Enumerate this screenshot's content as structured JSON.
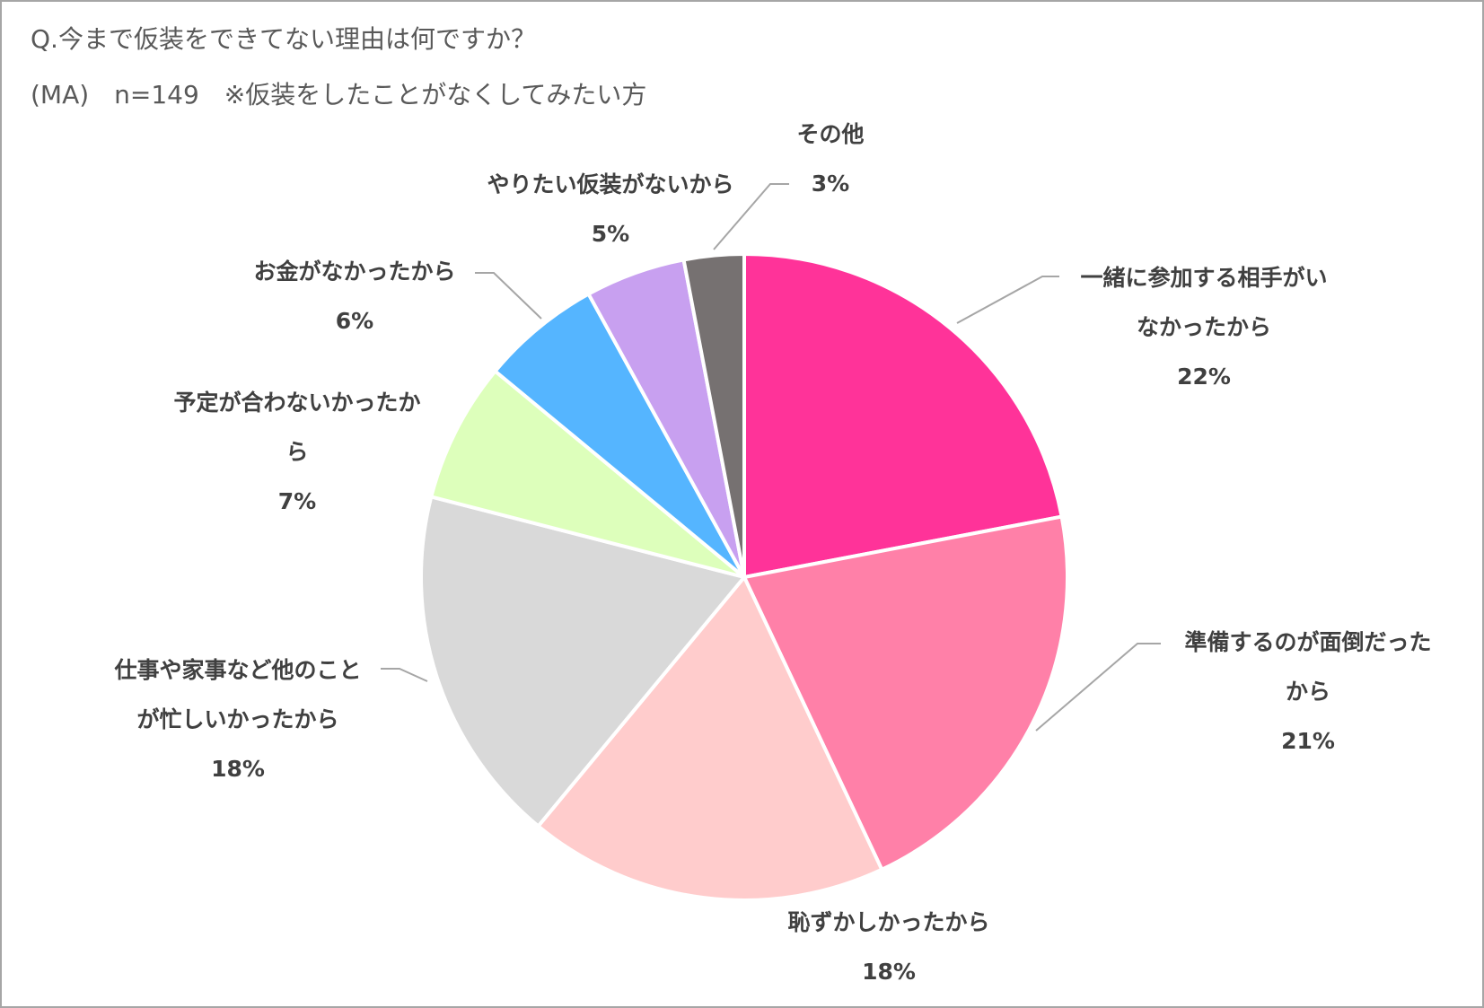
{
  "chart_data": {
    "type": "pie",
    "title": "Q.今まで仮装をできてない理由は何ですか？",
    "subtitle": "(MA)　n=149　※仮装をしたことがなくしてみたい方",
    "categories": [
      "一緒に参加する相手がいなかったから",
      "準備するのが面倒だったから",
      "恥ずかしかったから",
      "仕事や家事など他のことが忙しいかったから",
      "予定が合わないかったから",
      "お金がなかったから",
      "やりたい仮装がないから",
      "その他"
    ],
    "values": [
      22,
      21,
      18,
      18,
      7,
      6,
      5,
      3
    ],
    "value_labels": [
      "22%",
      "21%",
      "18%",
      "18%",
      "7%",
      "6%",
      "5%",
      "3%"
    ],
    "colors": [
      "#ff3399",
      "#ff80a8",
      "#ffcccc",
      "#d9d9d9",
      "#ddffbb",
      "#55b5ff",
      "#c8a0f0",
      "#767171"
    ]
  }
}
